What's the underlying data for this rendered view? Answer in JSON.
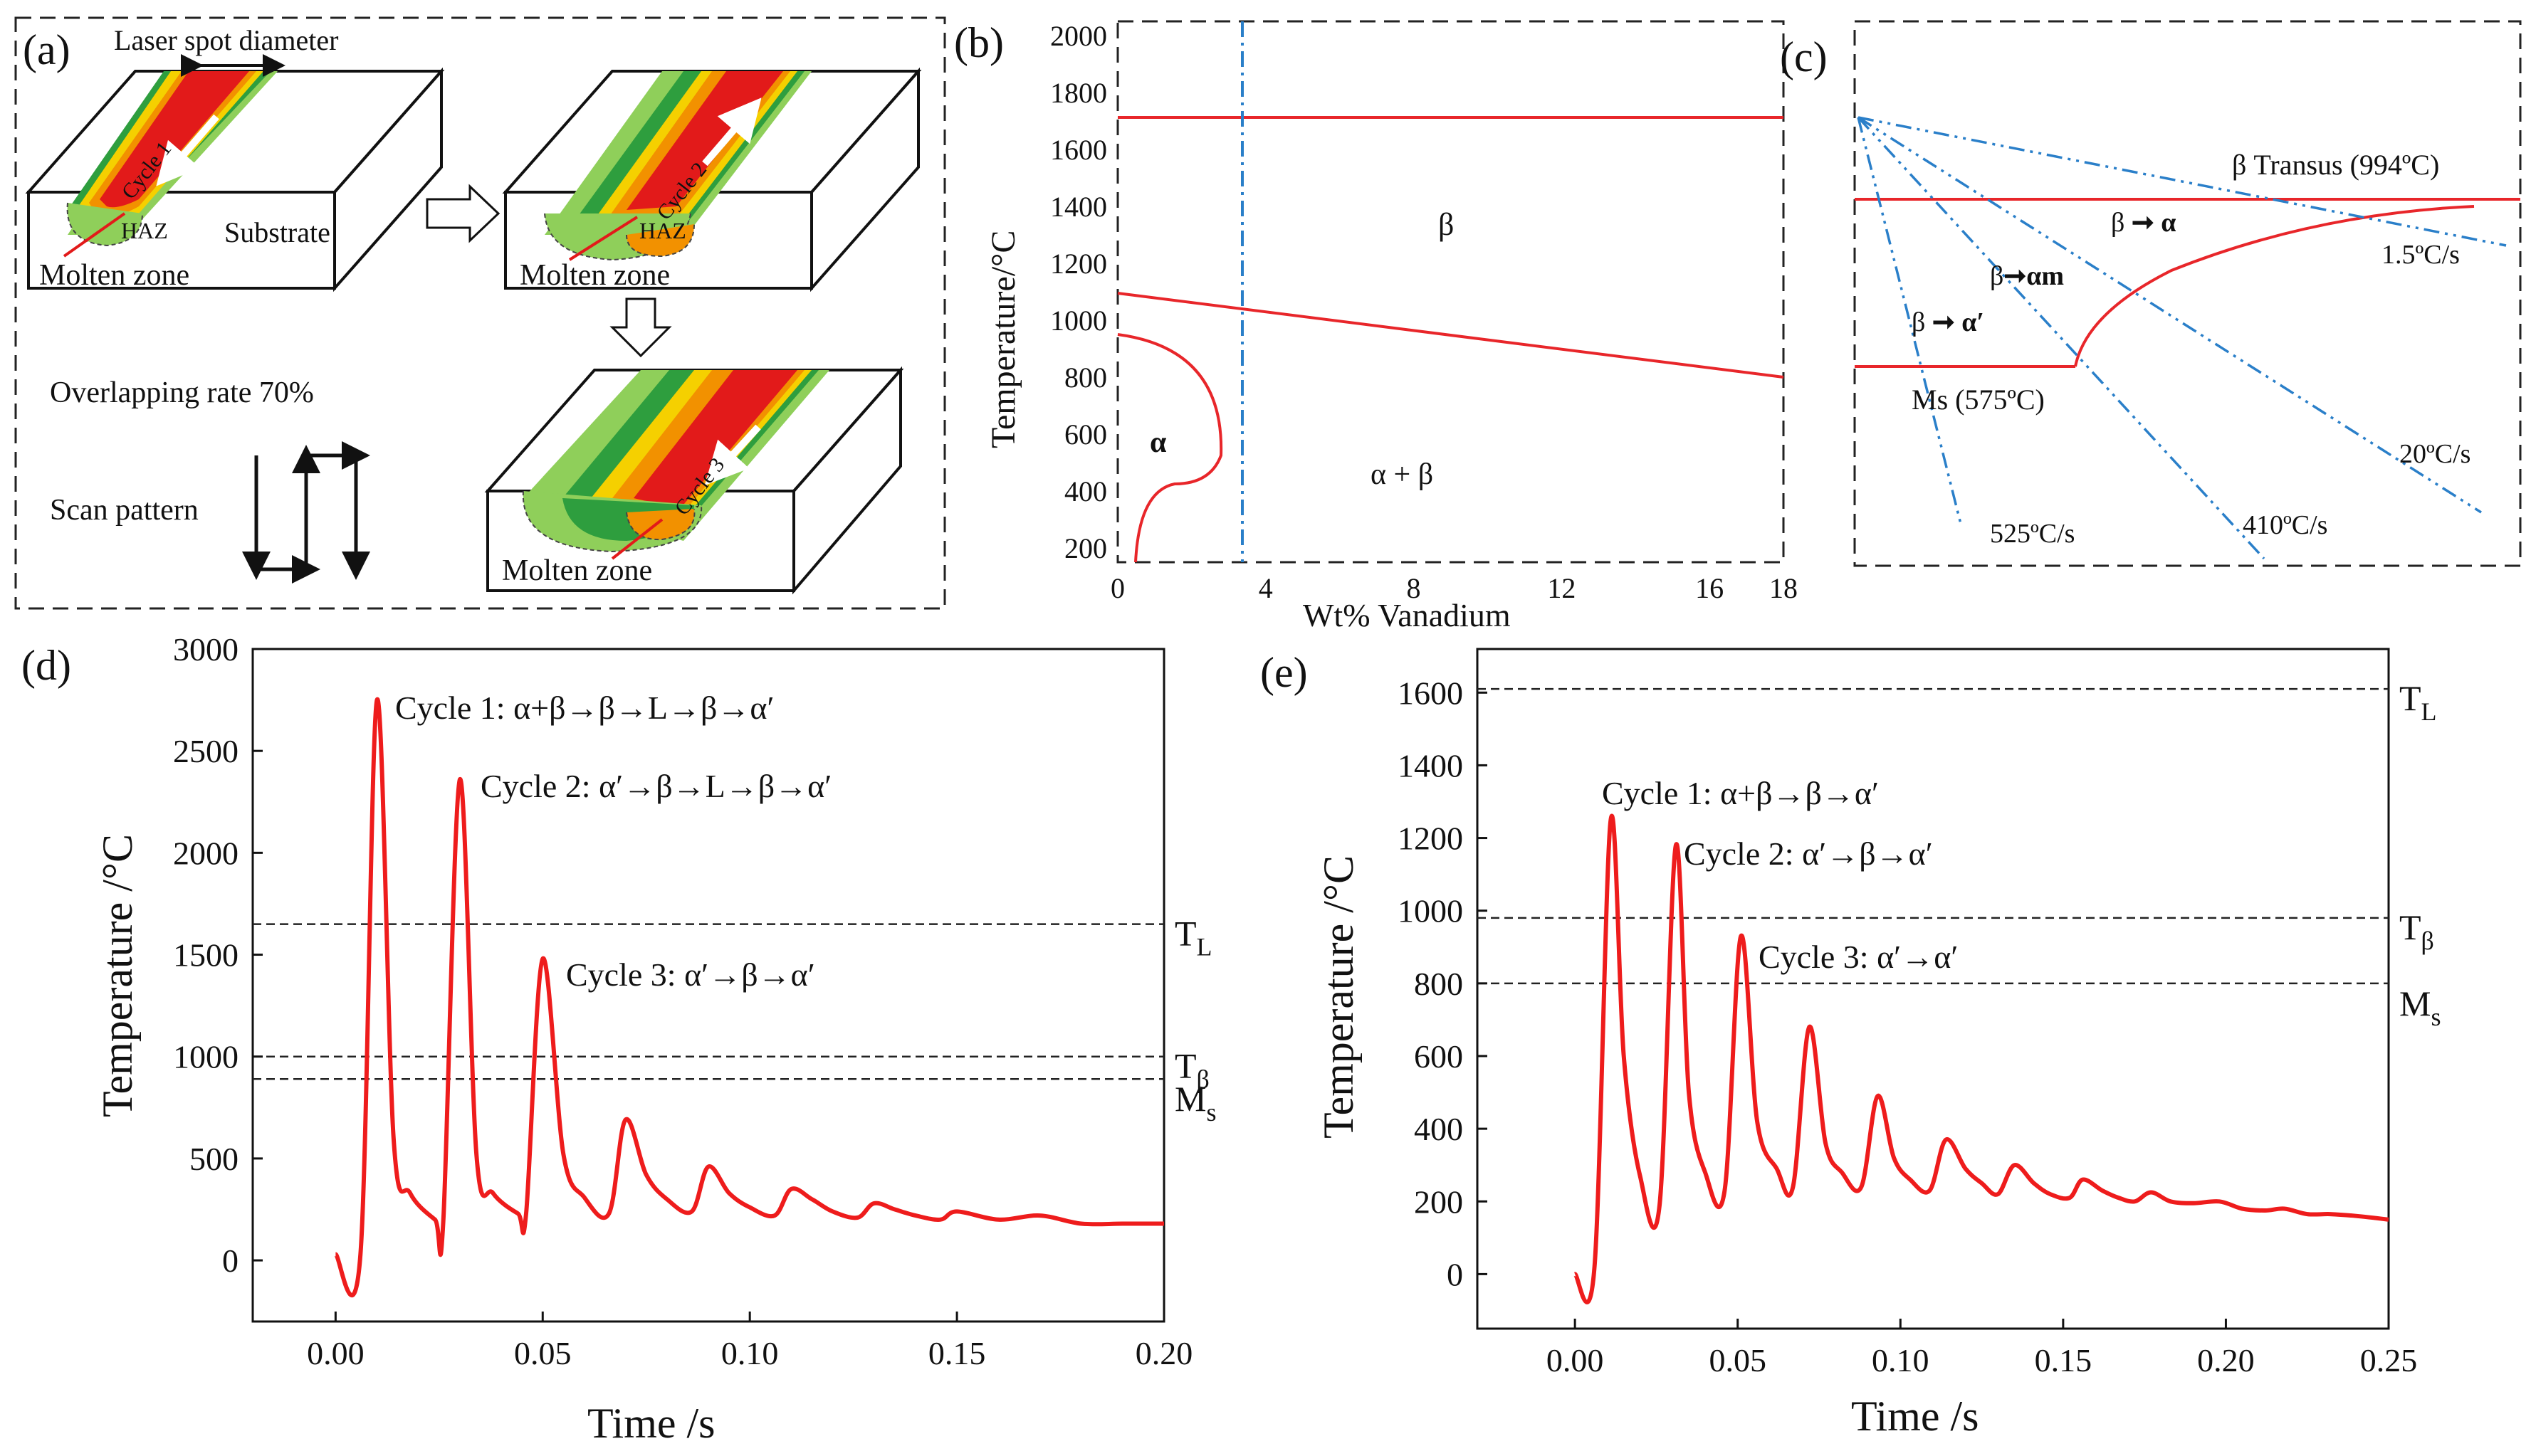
{
  "panel_a": {
    "label": "(a)",
    "laser_spot_label": "Laser spot diameter",
    "cycle1": "Cycle 1",
    "cycle2": "Cycle 2",
    "cycle3": "Cycle 3",
    "haz": "HAZ",
    "substrate": "Substrate",
    "molten_zone": "Molten zone",
    "overlapping_rate": "Overlapping rate 70%",
    "scan_pattern": "Scan pattern",
    "colors": {
      "track_outer": "#8fcf5a",
      "track_mid": "#2e9e3e",
      "track_yellow": "#f5d000",
      "track_orange": "#f29100",
      "track_red": "#e21a1a",
      "arrow": "#ffffff"
    }
  },
  "panel_b": {
    "label": "(b)",
    "xlabel": "Wt% Vanadium",
    "ylabel": "Temperature/°C",
    "x_ticks": [
      "0",
      "4",
      "8",
      "12",
      "16",
      "18"
    ],
    "y_ticks": [
      "200",
      "400",
      "600",
      "800",
      "1000",
      "1200",
      "1400",
      "1600",
      "1800",
      "2000"
    ],
    "region_beta": "β",
    "region_alpha": "α",
    "region_alpha_beta": "α + β",
    "line_color": "#e8262a",
    "marker_color": "#2a7fc9"
  },
  "panel_c": {
    "label": "(c)",
    "beta_transus": "β Transus (994ºC)",
    "ms": "Ms (575ºC)",
    "tr1": "β",
    "tr1b": "α",
    "tr2": "β",
    "tr2b": "αm",
    "tr3": "β",
    "tr3b": "α′",
    "rate1": "1.5ºC/s",
    "rate2": "20ºC/s",
    "rate3": "410ºC/s",
    "rate4": "525ºC/s"
  },
  "chart_data": [
    {
      "id": "d",
      "type": "line",
      "panel_label": "(d)",
      "xlabel": "Time /s",
      "ylabel": "Temperature /°C",
      "xlim": [
        -0.02,
        0.2
      ],
      "ylim": [
        -300,
        3000
      ],
      "x_ticks": [
        "0.00",
        "0.05",
        "0.10",
        "0.15",
        "0.20"
      ],
      "y_ticks": [
        "0",
        "500",
        "1000",
        "1500",
        "2000",
        "2500",
        "3000"
      ],
      "series": [
        {
          "values_x": [
            0.0,
            0.006,
            0.01,
            0.014,
            0.018,
            0.024,
            0.026,
            0.03,
            0.034,
            0.038,
            0.044,
            0.046,
            0.05,
            0.055,
            0.06,
            0.066,
            0.07,
            0.075,
            0.08,
            0.086,
            0.09,
            0.095,
            0.1,
            0.106,
            0.11,
            0.115,
            0.12,
            0.126,
            0.13,
            0.135,
            0.14,
            0.146,
            0.15,
            0.16,
            0.17,
            0.18,
            0.19,
            0.2
          ],
          "values_y": [
            30,
            30,
            2750,
            600,
            330,
            200,
            190,
            2360,
            520,
            330,
            230,
            230,
            1480,
            520,
            310,
            230,
            690,
            420,
            300,
            240,
            460,
            330,
            260,
            220,
            350,
            300,
            240,
            210,
            280,
            250,
            220,
            200,
            240,
            200,
            220,
            180,
            180,
            180
          ]
        }
      ],
      "hlines": [
        {
          "label": "T",
          "sub": "L",
          "value": 1650
        },
        {
          "label": "T",
          "sub": "β",
          "value": 1000
        },
        {
          "label": "M",
          "sub": "s",
          "value": 890
        }
      ],
      "annotations": [
        "Cycle 1: α+β→β→L→β→α′",
        "Cycle 2: α′→β→L→β→α′",
        "Cycle 3: α′→β→α′"
      ]
    },
    {
      "id": "e",
      "type": "line",
      "panel_label": "(e)",
      "xlabel": "Time /s",
      "ylabel": "Temperature /°C",
      "xlim": [
        -0.03,
        0.25
      ],
      "ylim": [
        -150,
        1720
      ],
      "x_ticks": [
        "0.00",
        "0.05",
        "0.10",
        "0.15",
        "0.20",
        "0.25"
      ],
      "y_ticks": [
        "0",
        "200",
        "400",
        "600",
        "800",
        "1000",
        "1200",
        "1400",
        "1600"
      ],
      "series": [
        {
          "values_x": [
            0.0,
            0.006,
            0.011,
            0.015,
            0.02,
            0.026,
            0.031,
            0.035,
            0.04,
            0.046,
            0.051,
            0.056,
            0.062,
            0.067,
            0.072,
            0.077,
            0.082,
            0.088,
            0.093,
            0.098,
            0.103,
            0.109,
            0.114,
            0.12,
            0.125,
            0.13,
            0.135,
            0.141,
            0.146,
            0.152,
            0.156,
            0.162,
            0.167,
            0.172,
            0.177,
            0.183,
            0.19,
            0.198,
            0.205,
            0.212,
            0.218,
            0.225,
            0.232,
            0.24,
            0.25
          ],
          "values_y": [
            0,
            20,
            1250,
            600,
            270,
            190,
            1180,
            500,
            280,
            230,
            930,
            420,
            290,
            240,
            680,
            360,
            280,
            240,
            490,
            320,
            260,
            230,
            370,
            290,
            250,
            220,
            300,
            250,
            220,
            210,
            260,
            230,
            210,
            200,
            225,
            200,
            195,
            200,
            180,
            175,
            180,
            165,
            165,
            160,
            150
          ]
        }
      ],
      "hlines": [
        {
          "label": "T",
          "sub": "L",
          "value": 1610
        },
        {
          "label": "T",
          "sub": "β",
          "value": 980
        },
        {
          "label": "M",
          "sub": "s",
          "value": 800
        }
      ],
      "annotations": [
        "Cycle 1: α+β→β→α′",
        "Cycle 2: α′→β→α′",
        "Cycle 3: α′→α′"
      ]
    }
  ]
}
